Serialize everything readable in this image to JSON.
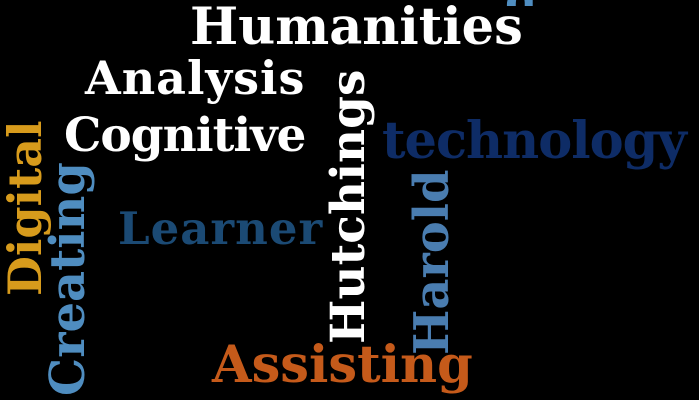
{
  "word_cloud": {
    "words": {
      "humanities": "Humanities",
      "analysis": "Analysis",
      "cognitive": "Cognitive",
      "technology": "technology",
      "learner": "Learner",
      "assisting": "Assisting",
      "digital": "Digital",
      "creating": "Creating",
      "hutchings": "Hutchings",
      "harold": "Harold"
    },
    "colors": {
      "background": "#000000",
      "white": "#ffffff",
      "navy": "#0e2c66",
      "dark_blue": "#1b4a74",
      "steel_blue": "#4f8dc0",
      "mid_blue": "#4a7db0",
      "orange": "#c55a1a",
      "gold": "#d79b1c"
    }
  }
}
